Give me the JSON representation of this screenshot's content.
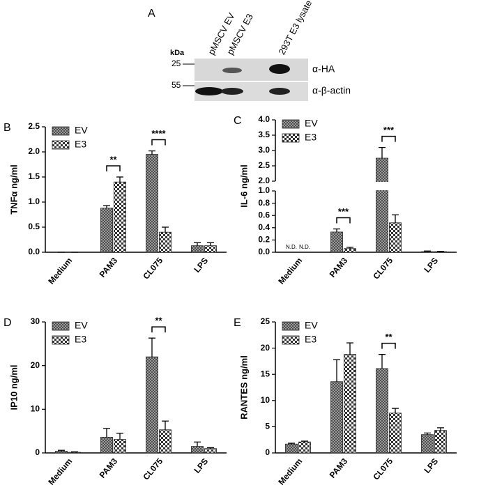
{
  "panel_a": {
    "label": "A",
    "kda": "kDa",
    "markers": [
      "25",
      "55"
    ],
    "lanes": [
      "pMSCV EV",
      "pMSCV E3",
      "293T E3 lysate"
    ],
    "antibodies": [
      "α-HA",
      "α-β-actin"
    ]
  },
  "chart_data": [
    {
      "type": "bar",
      "panel": "B",
      "y_label": "TNFα ng/ml",
      "categories": [
        "Medium",
        "PAM3",
        "CL075",
        "LPS"
      ],
      "ylim": [
        0,
        2.5
      ],
      "yticks": [
        {
          "value": 0,
          "label": "0.0"
        },
        0.5,
        {
          "value": 1.0,
          "label": "1.0"
        },
        1.5,
        {
          "value": 2.0,
          "label": "2.0"
        },
        2.5
      ],
      "series": [
        {
          "name": "EV",
          "color": "#444444",
          "values": [
            0,
            0.88,
            1.95,
            0.13
          ],
          "errors": [
            0,
            0.05,
            0.07,
            0.06
          ]
        },
        {
          "name": "E3",
          "color": "#333333",
          "values": [
            0,
            1.4,
            0.4,
            0.13
          ],
          "errors": [
            0,
            0.1,
            0.1,
            0.06
          ]
        }
      ],
      "annotations": [
        {
          "text": "**",
          "category": "PAM3"
        },
        {
          "text": "****",
          "category": "CL075"
        }
      ]
    },
    {
      "type": "bar",
      "panel": "C",
      "y_label": "IL-6 ng/ml",
      "categories": [
        "Medium",
        "PAM3",
        "CL075",
        "LPS"
      ],
      "axis_segments": [
        {
          "ylim": [
            0,
            1.0
          ],
          "yticks": [
            {
              "value": 0,
              "label": "0.0"
            },
            0.2,
            0.4,
            0.6,
            0.8,
            {
              "value": 1.0,
              "label": "1.0"
            }
          ]
        },
        {
          "ylim": [
            2.0,
            4.0
          ],
          "yticks": [
            {
              "value": 2.0,
              "label": "2.0"
            },
            2.5,
            {
              "value": 3.0,
              "label": "3.0"
            },
            3.5,
            {
              "value": 4.0,
              "label": "4.0"
            }
          ]
        }
      ],
      "series": [
        {
          "name": "EV",
          "color": "#444444",
          "values": [
            null,
            0.33,
            2.75,
            0.01
          ],
          "errors": [
            null,
            0.05,
            0.35,
            0.01
          ]
        },
        {
          "name": "E3",
          "color": "#333333",
          "values": [
            null,
            0.06,
            0.48,
            0.01
          ],
          "errors": [
            null,
            0.02,
            0.13,
            0.005
          ]
        }
      ],
      "annotations": [
        {
          "text": "***",
          "category": "PAM3"
        },
        {
          "text": "***",
          "category": "CL075"
        }
      ],
      "not_detected": [
        {
          "text": "N.D.",
          "category": "Medium",
          "series": "EV"
        },
        {
          "text": "N.D.",
          "category": "Medium",
          "series": "E3"
        }
      ]
    },
    {
      "type": "bar",
      "panel": "D",
      "y_label": "IP10 ng/ml",
      "categories": [
        "Medium",
        "PAM3",
        "CL075",
        "LPS"
      ],
      "ylim": [
        0,
        30
      ],
      "yticks": [
        0,
        10,
        20,
        30
      ],
      "series": [
        {
          "name": "EV",
          "color": "#444444",
          "values": [
            0.4,
            3.6,
            22,
            1.5
          ],
          "errors": [
            0.2,
            2,
            4.3,
            1
          ]
        },
        {
          "name": "E3",
          "color": "#333333",
          "values": [
            0.15,
            3.1,
            5.3,
            1.0
          ],
          "errors": [
            0.1,
            1.4,
            2,
            0.2
          ]
        }
      ],
      "annotations": [
        {
          "text": "**",
          "category": "CL075"
        }
      ]
    },
    {
      "type": "bar",
      "panel": "E",
      "y_label": "RANTES ng/ml",
      "categories": [
        "Medium",
        "PAM3",
        "CL075",
        "LPS"
      ],
      "ylim": [
        0,
        25
      ],
      "yticks": [
        0,
        5,
        10,
        15,
        20,
        25
      ],
      "series": [
        {
          "name": "EV",
          "color": "#444444",
          "values": [
            1.7,
            13.6,
            16.1,
            3.5
          ],
          "errors": [
            0.15,
            4.2,
            2.7,
            0.3
          ]
        },
        {
          "name": "E3",
          "color": "#333333",
          "values": [
            2.1,
            18.8,
            7.6,
            4.3
          ],
          "errors": [
            0.15,
            2.2,
            0.9,
            0.5
          ]
        }
      ],
      "annotations": [
        {
          "text": "**",
          "category": "CL075"
        }
      ]
    }
  ]
}
